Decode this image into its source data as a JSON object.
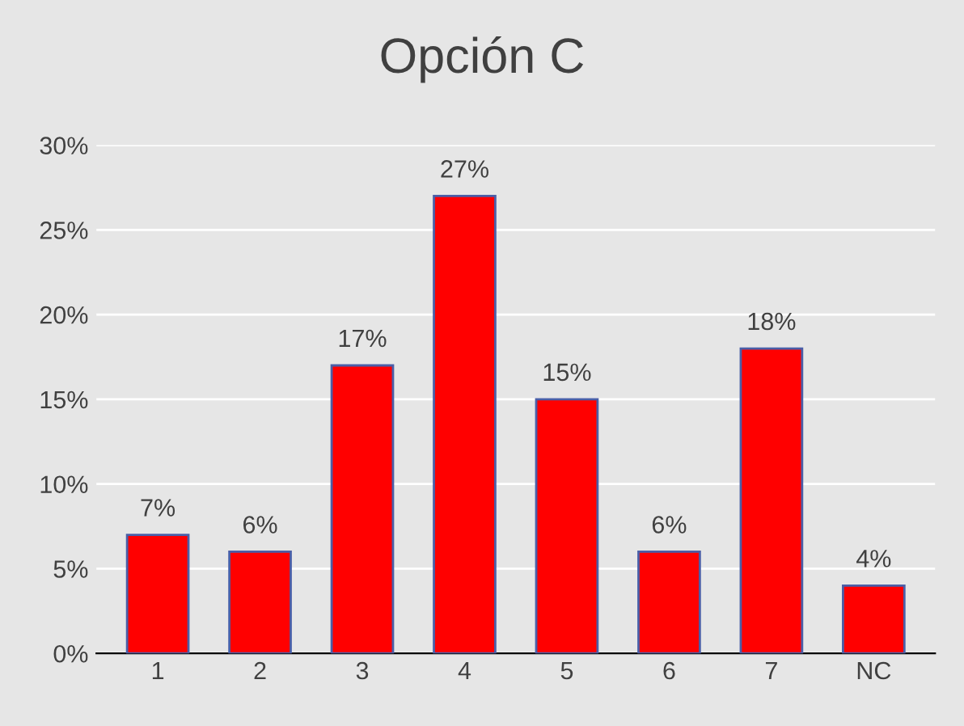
{
  "chart_data": {
    "type": "bar",
    "title": "Opción C",
    "categories": [
      "1",
      "2",
      "3",
      "4",
      "5",
      "6",
      "7",
      "NC"
    ],
    "values": [
      7,
      6,
      17,
      27,
      15,
      6,
      18,
      4
    ],
    "value_labels": [
      "7%",
      "6%",
      "17%",
      "27%",
      "15%",
      "6%",
      "18%",
      "4%"
    ],
    "color": "#ff0000",
    "ylim": [
      0,
      30
    ],
    "yticks": [
      {
        "value": 0,
        "label": "0%"
      },
      {
        "value": 5,
        "label": "5%"
      },
      {
        "value": 10,
        "label": "10%"
      },
      {
        "value": 15,
        "label": "15%"
      },
      {
        "value": 20,
        "label": "20%"
      },
      {
        "value": 25,
        "label": "25%"
      },
      {
        "value": 30,
        "label": "30%"
      }
    ],
    "grid": "y",
    "legend": false
  }
}
